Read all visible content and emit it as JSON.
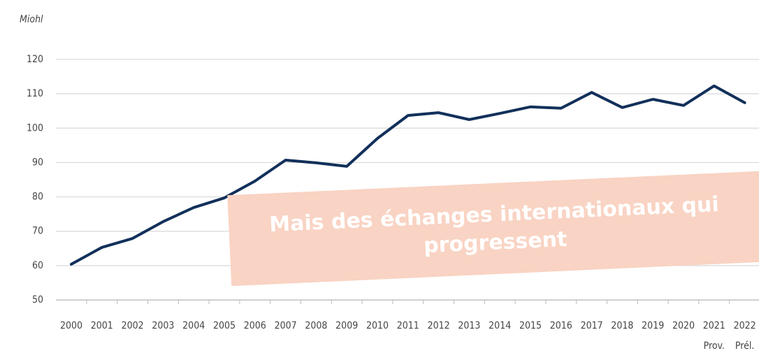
{
  "chart_data": {
    "type": "line",
    "unit_label": "Miohl",
    "categories": [
      "2000",
      "2001",
      "2002",
      "2003",
      "2004",
      "2005",
      "2006",
      "2007",
      "2008",
      "2009",
      "2010",
      "2011",
      "2012",
      "2013",
      "2014",
      "2015",
      "2016",
      "2017",
      "2018",
      "2019",
      "2020",
      "2021",
      "2022"
    ],
    "sublabels": [
      null,
      null,
      null,
      null,
      null,
      null,
      null,
      null,
      null,
      null,
      null,
      null,
      null,
      null,
      null,
      null,
      null,
      null,
      null,
      null,
      null,
      "Prov.",
      "Prél."
    ],
    "values": [
      60.4,
      65.3,
      67.9,
      72.8,
      76.9,
      79.7,
      84.6,
      90.7,
      89.9,
      88.9,
      97.0,
      103.7,
      104.5,
      102.5,
      104.3,
      106.2,
      105.8,
      110.4,
      106.0,
      108.4,
      106.6,
      112.3,
      107.4
    ],
    "color": "#12305a",
    "ylim": [
      50,
      120
    ],
    "yticks": [
      50,
      60,
      70,
      80,
      90,
      100,
      110,
      120
    ],
    "grid": true,
    "annotation": [
      "Mais des échanges internationaux qui",
      "progressent"
    ]
  }
}
